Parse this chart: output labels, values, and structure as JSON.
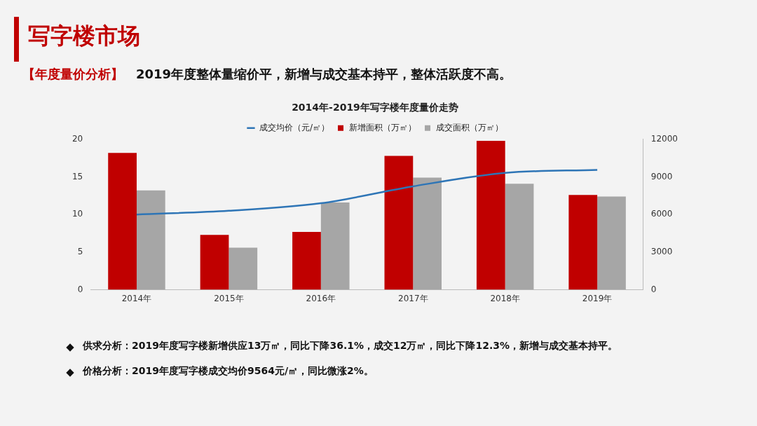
{
  "chart_data": {
    "type": "bar",
    "title": "2014年-2019年写字楼年度量价走势",
    "categories": [
      "2014年",
      "2015年",
      "2016年",
      "2017年",
      "2018年",
      "2019年"
    ],
    "series": [
      {
        "name": "新增面积（万㎡）",
        "color": "#c00000",
        "values": [
          18.2,
          7.3,
          7.7,
          17.8,
          19.8,
          12.6
        ]
      },
      {
        "name": "成交面积（万㎡）",
        "color": "#a6a6a6",
        "values": [
          13.2,
          5.6,
          11.6,
          14.9,
          14.1,
          12.4
        ]
      },
      {
        "name": "成交均价（元/㎡）",
        "color": "#2e75b6",
        "type": "line",
        "axis": "y2",
        "values": [
          6000,
          6300,
          6900,
          8250,
          9320,
          9564
        ]
      }
    ],
    "ylim": [
      0,
      20
    ],
    "yticks": [
      0,
      5,
      10,
      15,
      20
    ],
    "y2lim": [
      0,
      12000
    ],
    "y2ticks": [
      0,
      3000,
      6000,
      9000,
      12000
    ],
    "legend": "top",
    "grid": false,
    "marker": "none",
    "annotations": [
      "写字楼市场",
      "【年度量价分析】",
      "2019年度整体量缩价平，新增与成交基本持平，整体活跃度不高。",
      "供求分析：2019年度写字楼新增供应13万㎡，同比下降36.1%，成交12万㎡，同比下降12.3%，新增与成交基本持平。",
      "价格分析：2019年度写字楼成交均价9564元/㎡，同比微涨2%。"
    ]
  }
}
